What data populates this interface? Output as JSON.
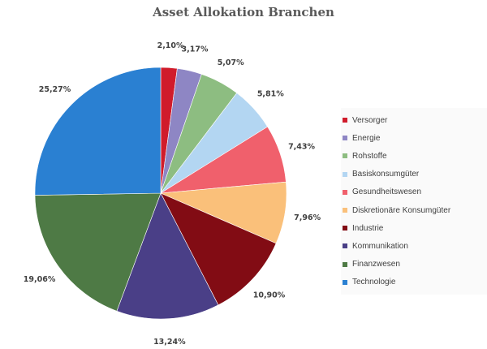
{
  "chart_data": {
    "type": "pie",
    "title": "Asset Allokation Branchen",
    "start_angle_deg": 0,
    "direction": "clockwise",
    "legend_position": "right",
    "slices": [
      {
        "label": "Versorger",
        "value": 2.1,
        "display": "2,10%",
        "color": "#d01c2b"
      },
      {
        "label": "Energie",
        "value": 3.17,
        "display": "3,17%",
        "color": "#8e86c4"
      },
      {
        "label": "Rohstoffe",
        "value": 5.07,
        "display": "5,07%",
        "color": "#8dbd81"
      },
      {
        "label": "Basiskonsumgüter",
        "value": 5.81,
        "display": "5,81%",
        "color": "#b3d6f2"
      },
      {
        "label": "Gesundheitswesen",
        "value": 7.43,
        "display": "7,43%",
        "color": "#f0606c"
      },
      {
        "label": "Diskretionäre Konsumgüter",
        "value": 7.96,
        "display": "7,96%",
        "color": "#fac07a"
      },
      {
        "label": "Industrie",
        "value": 10.9,
        "display": "10,90%",
        "color": "#820c14"
      },
      {
        "label": "Kommunikation",
        "value": 13.24,
        "display": "13,24%",
        "color": "#4a3f87"
      },
      {
        "label": "Finanzwesen",
        "value": 19.06,
        "display": "19,06%",
        "color": "#4e7a45"
      },
      {
        "label": "Technologie",
        "value": 25.27,
        "display": "25,27%",
        "color": "#2a80d2"
      }
    ]
  }
}
